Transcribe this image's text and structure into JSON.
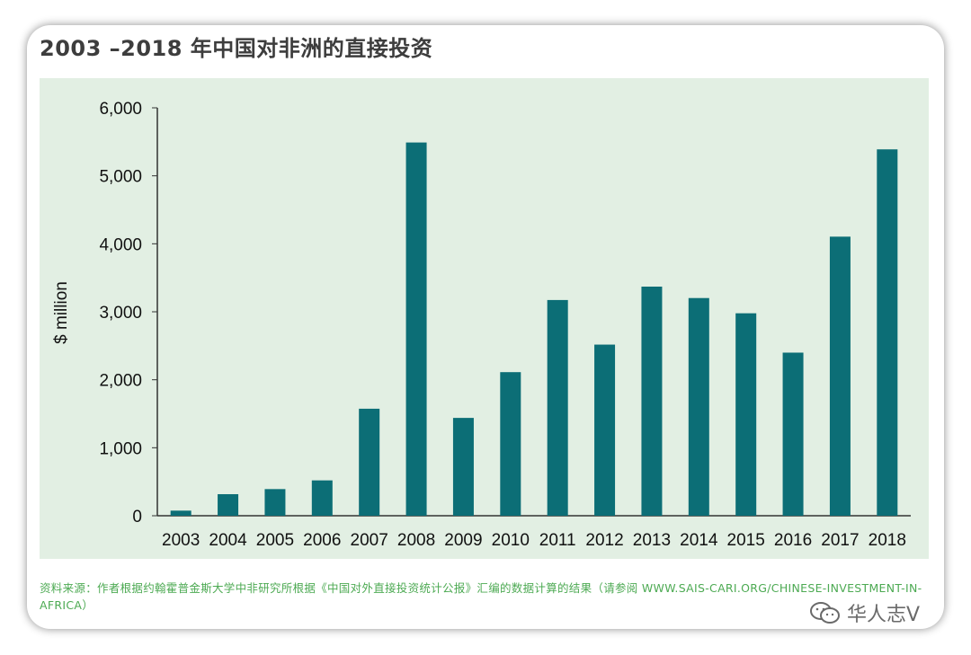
{
  "title": "2003 –2018 年中国对非洲的直接投资",
  "source_note": "资料来源：作者根据约翰霍普金斯大学中非研究所根据《中国对外直接投资统计公报》汇编的数据计算的结果（请参阅 WWW.SAIS-CARI.ORG/CHINESE-INVESTMENT-IN-AFRICA）",
  "watermark": "华人志V",
  "colors": {
    "bar": "#0c6e76",
    "plot_bg": "#e2efe3",
    "source_text": "#4daa53"
  },
  "chart_data": {
    "type": "bar",
    "title": "2003 –2018 年中国对非洲的直接投资",
    "xlabel": "",
    "ylabel": "$ million",
    "ylim": [
      0,
      6000
    ],
    "yticks": [
      0,
      1000,
      2000,
      3000,
      4000,
      5000,
      6000
    ],
    "ytick_labels": [
      "0",
      "1,000",
      "2,000",
      "3,000",
      "4,000",
      "5,000",
      "6,000"
    ],
    "categories": [
      "2003",
      "2004",
      "2005",
      "2006",
      "2007",
      "2008",
      "2009",
      "2010",
      "2011",
      "2012",
      "2013",
      "2014",
      "2015",
      "2016",
      "2017",
      "2018"
    ],
    "values": [
      75,
      317,
      392,
      520,
      1574,
      5490,
      1439,
      2112,
      3173,
      2517,
      3370,
      3202,
      2978,
      2399,
      4105,
      5389
    ],
    "grid": false
  }
}
